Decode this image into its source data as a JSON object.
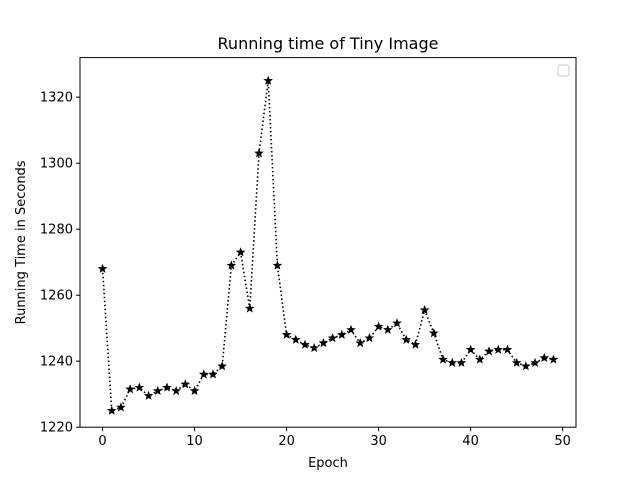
{
  "chart_data": {
    "type": "line",
    "title": "Running time of Tiny Image",
    "xlabel": "Epoch",
    "ylabel": "Running Time in Seconds",
    "xlim": [
      -2.45,
      51.45
    ],
    "ylim": [
      1220,
      1332
    ],
    "xticks": [
      0,
      10,
      20,
      30,
      40,
      50
    ],
    "yticks": [
      1220,
      1240,
      1260,
      1280,
      1300,
      1320
    ],
    "grid": false,
    "legend": "top-right",
    "line_style": "dotted",
    "marker": "star",
    "color": "#000000",
    "series": [
      {
        "x": [
          0,
          1,
          2,
          3,
          4,
          5,
          6,
          7,
          8,
          9,
          10,
          11,
          12,
          13,
          14,
          15,
          16,
          17,
          18,
          19,
          20,
          21,
          22,
          23,
          24,
          25,
          26,
          27,
          28,
          29,
          30,
          31,
          32,
          33,
          34,
          35,
          36,
          37,
          38,
          39,
          40,
          41,
          42,
          43,
          44,
          45,
          46,
          47,
          48,
          49
        ],
        "values": [
          1268,
          1225,
          1226,
          1231.5,
          1232,
          1229.5,
          1231,
          1232,
          1231,
          1233,
          1231,
          1236,
          1236,
          1238.5,
          1269,
          1273,
          1256,
          1303,
          1325,
          1269,
          1248,
          1246.5,
          1245,
          1244,
          1245.5,
          1247,
          1248,
          1249.5,
          1245.5,
          1247,
          1250.5,
          1249.5,
          1251.5,
          1246.5,
          1245,
          1255.5,
          1248.5,
          1240.5,
          1239.5,
          1239.5,
          1243.5,
          1240.5,
          1243,
          1243.5,
          1243.5,
          1239.5,
          1238.5,
          1239.5,
          1241,
          1240.5
        ]
      }
    ]
  }
}
